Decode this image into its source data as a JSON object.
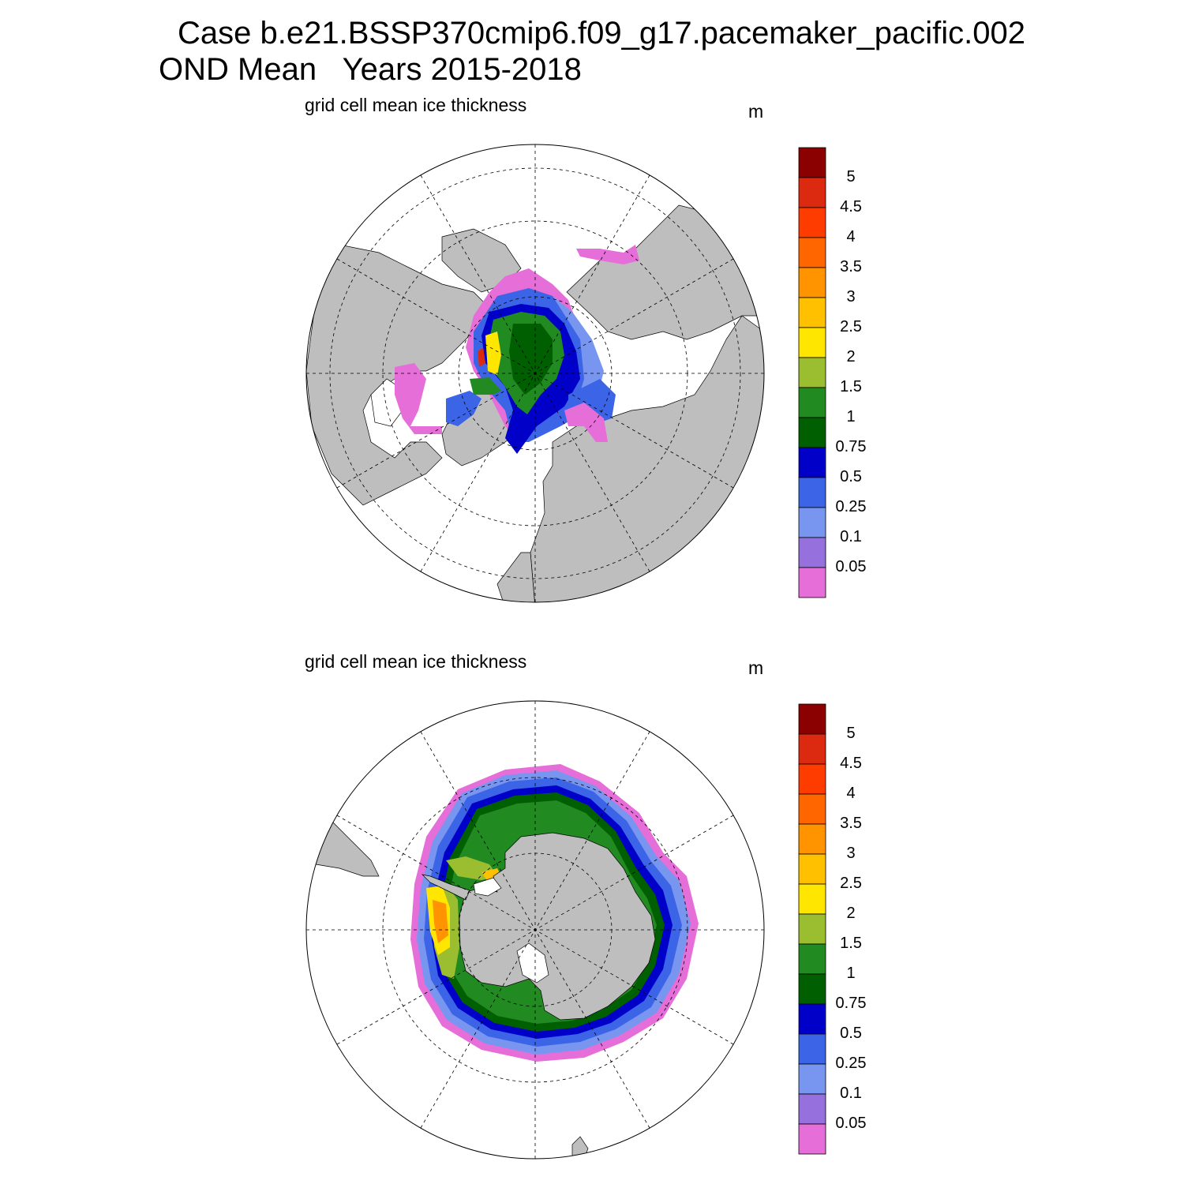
{
  "header": {
    "line1": "Case b.e21.BSSP370cmip6.f09_g17.pacemaker_pacific.002",
    "line2": "OND Mean   Years 2015-2018"
  },
  "panels": [
    {
      "title": "grid cell mean ice thickness",
      "units": "m",
      "hemisphere": "north"
    },
    {
      "title": "grid cell mean ice thickness",
      "units": "m",
      "hemisphere": "south"
    }
  ],
  "colorbar": {
    "labels": [
      "5",
      "4.5",
      "4",
      "3.5",
      "3",
      "2.5",
      "2",
      "1.5",
      "1",
      "0.75",
      "0.5",
      "0.25",
      "0.1",
      "0.05"
    ],
    "colors": [
      "#8b0000",
      "#dc2a10",
      "#ff3c00",
      "#ff6600",
      "#ff9400",
      "#ffc000",
      "#ffe600",
      "#9bbe30",
      "#218a21",
      "#005f00",
      "#0000c8",
      "#3c64e6",
      "#7896f0",
      "#9670dc",
      "#e66ed8"
    ]
  },
  "map_colors": {
    "land": "#bebebe",
    "ocean": "#ffffff"
  }
}
